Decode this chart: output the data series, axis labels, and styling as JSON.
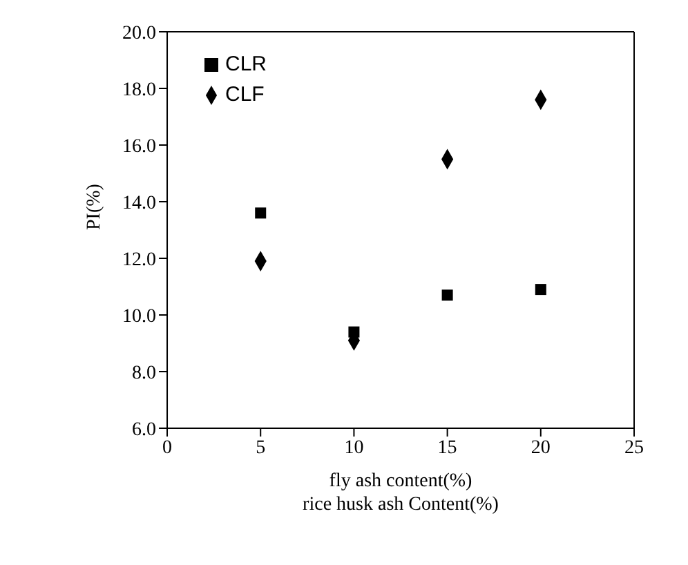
{
  "chart_data": {
    "type": "scatter",
    "xlabel": "fly ash content(%)\nrice husk ash  Content(%)",
    "ylabel": "PI(%)",
    "x": [
      5,
      10,
      15,
      20
    ],
    "series": [
      {
        "name": "CLR",
        "color": "#000000",
        "marker": "square",
        "values": [
          13.6,
          9.4,
          10.7,
          10.9
        ]
      },
      {
        "name": "CLF",
        "color": "#000000",
        "marker": "diamond",
        "values": [
          11.9,
          9.1,
          15.5,
          17.6
        ]
      }
    ],
    "xlim": [
      0,
      25
    ],
    "xticks": [
      0,
      5,
      10,
      15,
      20,
      25
    ],
    "ylim": [
      6,
      20
    ],
    "yticks": [
      {
        "value": 6,
        "label": "6.0"
      },
      {
        "value": 8,
        "label": "8.0"
      },
      {
        "value": 10,
        "label": "10.0"
      },
      {
        "value": 12,
        "label": "12.0"
      },
      {
        "value": 14,
        "label": "14.0"
      },
      {
        "value": 16,
        "label": "16.0"
      },
      {
        "value": 18,
        "label": "18.0"
      },
      {
        "value": 20,
        "label": "20.0"
      }
    ],
    "grid": false,
    "legend": "top left"
  }
}
